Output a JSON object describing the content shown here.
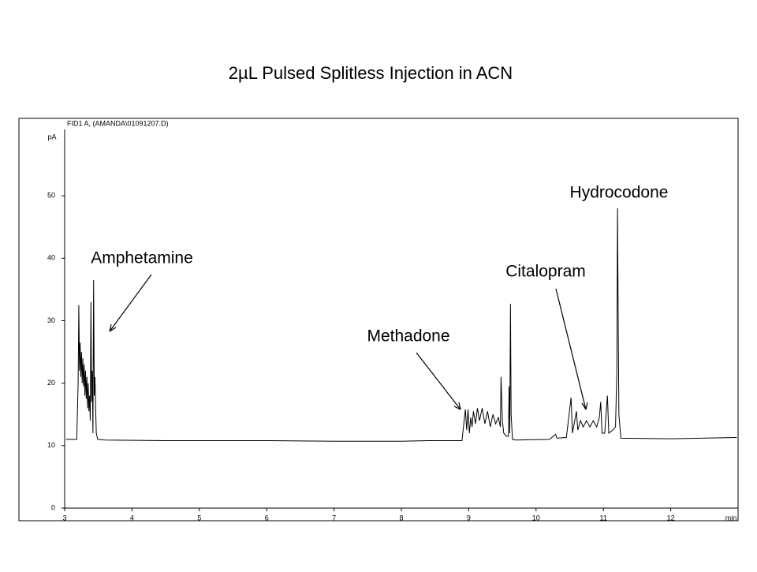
{
  "chart_data": {
    "type": "line",
    "title": "2µL Pulsed Splitless Injection in ACN",
    "header": "FID1 A,  (AMANDA\\01091207.D)",
    "ylabel": "pA",
    "xlabel": "min",
    "annotations": [
      "Amphetamine",
      "Methadone",
      "Citalopram",
      "Hydrocodone"
    ],
    "xlim": [
      3,
      13
    ],
    "xticks": [
      3,
      4,
      5,
      6,
      7,
      8,
      9,
      10,
      11,
      12
    ],
    "ylim": [
      0,
      62.4
    ],
    "yticks": [
      0,
      10,
      20,
      30,
      40,
      50
    ],
    "color": "#000000",
    "x": [
      3.02,
      3.18,
      3.2,
      3.21,
      3.22,
      3.23,
      3.24,
      3.25,
      3.26,
      3.27,
      3.28,
      3.29,
      3.3,
      3.31,
      3.32,
      3.33,
      3.34,
      3.35,
      3.36,
      3.37,
      3.38,
      3.39,
      3.4,
      3.41,
      3.42,
      3.43,
      3.44,
      3.45,
      3.46,
      3.47,
      3.49,
      3.6,
      4.5,
      6,
      7,
      8,
      8.4,
      8.9,
      8.95,
      8.97,
      8.99,
      9.01,
      9.03,
      9.05,
      9.07,
      9.1,
      9.13,
      9.16,
      9.2,
      9.24,
      9.28,
      9.32,
      9.36,
      9.4,
      9.44,
      9.47,
      9.48,
      9.5,
      9.52,
      9.56,
      9.59,
      9.6,
      9.61,
      9.62,
      9.63,
      9.65,
      9.7,
      10.2,
      10.29,
      10.31,
      10.45,
      10.52,
      10.54,
      10.6,
      10.62,
      10.66,
      10.7,
      10.75,
      10.8,
      10.85,
      10.9,
      10.94,
      10.96,
      10.98,
      11.02,
      11.06,
      11.08,
      11.14,
      11.18,
      11.2,
      11.21,
      11.22,
      11.23,
      11.26,
      12,
      12.98
    ],
    "values": [
      11.0,
      11.0,
      20,
      32.5,
      22,
      26.5,
      21,
      25,
      20,
      24,
      19.5,
      23,
      18,
      22,
      17.5,
      21,
      16,
      20,
      15.5,
      18,
      14,
      33,
      17,
      22,
      12,
      36.5,
      18,
      21,
      16,
      12,
      11.0,
      10.9,
      10.8,
      10.8,
      10.7,
      10.7,
      10.8,
      10.8,
      15.8,
      12.5,
      15.8,
      12,
      14.5,
      13,
      15.5,
      13.5,
      16,
      14,
      16,
      13.5,
      15.5,
      13,
      15,
      13.5,
      14.5,
      13,
      21,
      14,
      12,
      11.5,
      11.5,
      19.5,
      12,
      32.7,
      15,
      11,
      10.9,
      11.0,
      11.8,
      11.2,
      11.3,
      17.7,
      12,
      15.5,
      12.5,
      14,
      13,
      14,
      13,
      14,
      13,
      14.5,
      17,
      12,
      12,
      18,
      12,
      12.5,
      13,
      22,
      48,
      30,
      15,
      11.2,
      11.1,
      11.3
    ]
  }
}
